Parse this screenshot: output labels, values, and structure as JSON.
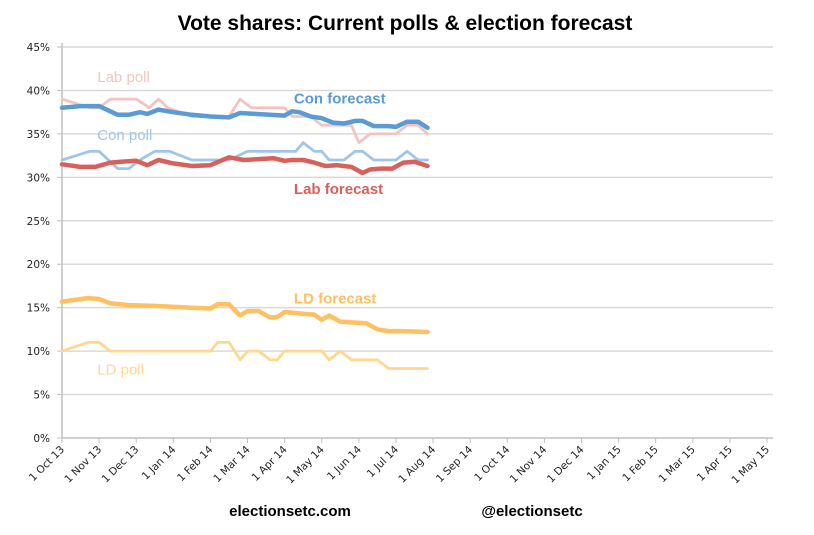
{
  "chart_data": {
    "type": "line",
    "title": "Vote shares: Current polls & election forecast",
    "xlabel": "",
    "ylabel": "",
    "ylim": [
      0,
      45
    ],
    "yticks": [
      "0%",
      "5%",
      "10%",
      "15%",
      "20%",
      "25%",
      "30%",
      "35%",
      "40%",
      "45%"
    ],
    "ytick_values": [
      0,
      5,
      10,
      15,
      20,
      25,
      30,
      35,
      40,
      45
    ],
    "xlim_months": [
      0,
      19
    ],
    "xticks": [
      "1 Oct 13",
      "1 Nov 13",
      "1 Dec 13",
      "1 Jan 14",
      "1 Feb 14",
      "1 Mar 14",
      "1 Apr 14",
      "1 May 14",
      "1 Jun 14",
      "1 Jul 14",
      "1 Aug 14",
      "1 Sep 14",
      "1 Oct 14",
      "1 Nov 14",
      "1 Dec 14",
      "1 Jan 15",
      "1 Feb 15",
      "1 Mar 15",
      "1 Apr 15",
      "1 May 15"
    ],
    "grid": true,
    "x_unit": "months since 1 Oct 13",
    "series": [
      {
        "name": "Lab poll",
        "color": "#f2c4c0",
        "width": "thin",
        "x": [
          0,
          0.75,
          1.0,
          1.3,
          2.0,
          2.35,
          2.6,
          2.85,
          3.5,
          4.0,
          4.5,
          4.8,
          5.1,
          5.5,
          6.0,
          6.2,
          6.4,
          6.7,
          7.0,
          7.5,
          7.8,
          8.0,
          8.3,
          8.6,
          9.0,
          9.3,
          9.6,
          9.85
        ],
        "values": [
          39,
          38,
          38,
          39,
          39,
          38,
          39,
          38,
          37,
          37,
          37,
          39,
          38,
          38,
          38,
          37,
          37,
          37,
          36,
          36,
          36,
          34,
          35,
          35,
          35,
          36,
          36,
          35
        ]
      },
      {
        "name": "Con poll",
        "color": "#9fc5e8",
        "width": "thin",
        "x": [
          0,
          0.75,
          1.0,
          1.5,
          1.8,
          2.1,
          2.5,
          2.9,
          3.5,
          4.0,
          4.5,
          5.0,
          5.5,
          6.0,
          6.3,
          6.5,
          6.8,
          7.0,
          7.2,
          7.6,
          7.9,
          8.1,
          8.4,
          8.8,
          9.0,
          9.3,
          9.6,
          9.85
        ],
        "values": [
          32,
          33,
          33,
          31,
          31,
          32,
          33,
          33,
          32,
          32,
          32,
          33,
          33,
          33,
          33,
          34,
          33,
          33,
          32,
          32,
          33,
          33,
          32,
          32,
          32,
          33,
          32,
          32
        ]
      },
      {
        "name": "Con forecast",
        "color": "#5b9bd5",
        "width": "thick",
        "x": [
          0,
          0.5,
          1.0,
          1.5,
          1.8,
          2.1,
          2.3,
          2.6,
          3.0,
          3.5,
          4.0,
          4.5,
          4.8,
          5.2,
          5.6,
          6.0,
          6.2,
          6.4,
          6.7,
          7.0,
          7.3,
          7.6,
          7.9,
          8.1,
          8.4,
          8.8,
          9.0,
          9.3,
          9.6,
          9.85
        ],
        "values": [
          38,
          38.2,
          38.2,
          37.2,
          37.2,
          37.5,
          37.3,
          37.8,
          37.5,
          37.2,
          37,
          36.9,
          37.4,
          37.3,
          37.2,
          37.1,
          37.6,
          37.5,
          37.0,
          36.8,
          36.3,
          36.2,
          36.5,
          36.5,
          35.9,
          35.9,
          35.8,
          36.4,
          36.4,
          35.7
        ]
      },
      {
        "name": "Lab forecast",
        "color": "#d9605a",
        "width": "thick",
        "x": [
          0,
          0.5,
          0.9,
          1.3,
          1.6,
          2.0,
          2.3,
          2.6,
          3.0,
          3.5,
          4.0,
          4.5,
          4.9,
          5.3,
          5.7,
          6.0,
          6.2,
          6.5,
          6.8,
          7.1,
          7.4,
          7.8,
          8.1,
          8.3,
          8.6,
          8.9,
          9.2,
          9.5,
          9.85
        ],
        "values": [
          31.5,
          31.2,
          31.2,
          31.7,
          31.8,
          31.9,
          31.4,
          32.0,
          31.6,
          31.3,
          31.4,
          32.3,
          32.0,
          32.1,
          32.2,
          31.9,
          32.0,
          32.0,
          31.7,
          31.3,
          31.4,
          31.2,
          30.5,
          30.9,
          31.0,
          31.0,
          31.7,
          31.8,
          31.3
        ]
      },
      {
        "name": "LD forecast",
        "color": "#ffc061",
        "width": "thick",
        "x": [
          0,
          0.7,
          1.0,
          1.3,
          1.8,
          2.5,
          3.0,
          3.5,
          4.0,
          4.2,
          4.5,
          4.8,
          5.0,
          5.3,
          5.6,
          5.8,
          6.0,
          6.5,
          6.8,
          7.0,
          7.2,
          7.5,
          7.8,
          8.2,
          8.5,
          8.8,
          9.2,
          9.85
        ],
        "values": [
          15.7,
          16.1,
          16.0,
          15.5,
          15.3,
          15.2,
          15.1,
          15.0,
          14.9,
          15.4,
          15.4,
          14.1,
          14.6,
          14.6,
          13.9,
          13.9,
          14.5,
          14.3,
          14.2,
          13.6,
          14.1,
          13.4,
          13.3,
          13.2,
          12.5,
          12.3,
          12.3,
          12.2
        ]
      },
      {
        "name": "LD poll",
        "color": "#ffd78f",
        "width": "thin",
        "x": [
          0,
          0.7,
          1.0,
          1.3,
          2.0,
          3.0,
          4.0,
          4.2,
          4.5,
          4.8,
          5.0,
          5.3,
          5.6,
          5.8,
          6.0,
          6.5,
          7.0,
          7.2,
          7.5,
          7.8,
          8.2,
          8.5,
          8.8,
          9.2,
          9.85
        ],
        "values": [
          10,
          11,
          11,
          10,
          10,
          10,
          10,
          11,
          11,
          9,
          10,
          10,
          9,
          9,
          10,
          10,
          10,
          9,
          10,
          9,
          9,
          9,
          8,
          8,
          8
        ]
      }
    ],
    "annotations": [
      {
        "text": "Lab poll",
        "series": "Lab poll",
        "x": 0.95,
        "y": 41.0,
        "bold": false,
        "color": "#f2c4c0"
      },
      {
        "text": "Con forecast",
        "series": "Con forecast",
        "x": 6.25,
        "y": 38.5,
        "bold": true,
        "color": "#5b9bd5"
      },
      {
        "text": "Con poll",
        "series": "Con poll",
        "x": 0.95,
        "y": 34.3,
        "bold": false,
        "color": "#9fc5e8"
      },
      {
        "text": "Lab forecast",
        "series": "Lab forecast",
        "x": 6.25,
        "y": 28.1,
        "bold": true,
        "color": "#d9605a"
      },
      {
        "text": "LD forecast",
        "series": "LD forecast",
        "x": 6.25,
        "y": 15.5,
        "bold": true,
        "color": "#ffc061"
      },
      {
        "text": "LD poll",
        "series": "LD poll",
        "x": 0.95,
        "y": 7.3,
        "bold": false,
        "color": "#ffd78f"
      }
    ]
  },
  "footer": {
    "left": "electionsetc.com",
    "right": "@electionsetc"
  }
}
